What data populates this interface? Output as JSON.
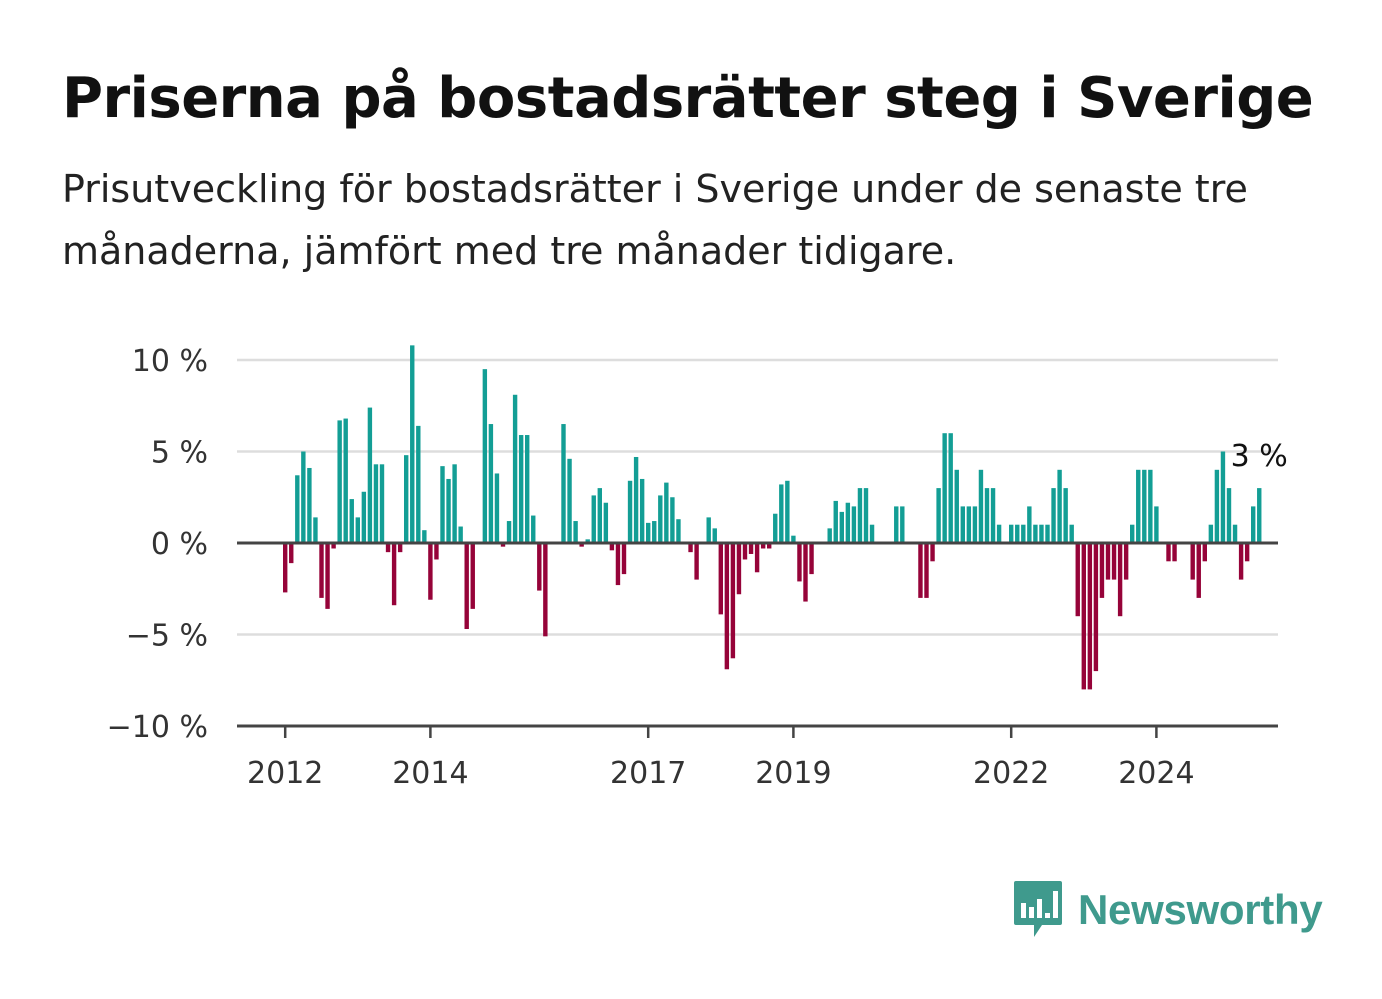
{
  "title": "Priserna på bostadsrätter steg i Sverige",
  "subtitle": "Prisutveckling för bostadsrätter i Sverige under de senaste tre månaderna, jämfört med tre månader tidigare.",
  "brand": {
    "name": "Newsworthy",
    "icon": "bar-chart-speech-bubble-icon",
    "color": "#3f9a8d"
  },
  "colors": {
    "positive": "#139e95",
    "negative": "#960339",
    "grid": "#dddddd",
    "axis": "#444444"
  },
  "chart_data": {
    "type": "bar",
    "title": "Priserna på bostadsrätter steg i Sverige",
    "xlabel": "",
    "ylabel": "",
    "ylim": [
      -10,
      11
    ],
    "y_ticks": [
      10,
      5,
      0,
      -5,
      -10
    ],
    "y_tick_labels": [
      "10 %",
      "5 %",
      "0 %",
      "−5 %",
      "−10 %"
    ],
    "x_ticks": [
      {
        "label": "2012",
        "year": 2012
      },
      {
        "label": "2014",
        "year": 2014
      },
      {
        "label": "2017",
        "year": 2017
      },
      {
        "label": "2019",
        "year": 2019
      },
      {
        "label": "2022",
        "year": 2022
      },
      {
        "label": "2024",
        "year": 2024
      }
    ],
    "grid": true,
    "start": "2012-01",
    "last_value_label": "3 %",
    "series": [
      {
        "unit": "%",
        "values": [
          -2.7,
          -1.1,
          3.7,
          5.0,
          4.1,
          1.4,
          -3.0,
          -3.6,
          -0.3,
          6.7,
          6.8,
          2.4,
          1.4,
          2.8,
          7.4,
          4.3,
          4.3,
          -0.5,
          -3.4,
          -0.5,
          4.8,
          10.8,
          6.4,
          0.7,
          -3.1,
          -0.9,
          4.2,
          3.5,
          4.3,
          0.9,
          -4.7,
          -3.6,
          0,
          9.5,
          6.5,
          3.8,
          -0.2,
          1.2,
          8.1,
          5.9,
          5.9,
          1.5,
          -2.6,
          -5.1,
          0,
          0,
          6.5,
          4.6,
          1.2,
          -0.2,
          0.2,
          2.6,
          3.0,
          2.2,
          -0.4,
          -2.3,
          -1.7,
          3.4,
          4.7,
          3.5,
          1.1,
          1.2,
          2.6,
          3.3,
          2.5,
          1.3,
          0,
          -0.5,
          -2.0,
          0,
          1.4,
          0.8,
          -3.9,
          -6.9,
          -6.3,
          -2.8,
          -0.9,
          -0.6,
          -1.6,
          -0.3,
          -0.3,
          1.6,
          3.2,
          3.4,
          0.4,
          -2.1,
          -3.2,
          -1.7,
          0,
          0,
          0.8,
          2.3,
          1.7,
          2.2,
          2.0,
          3.0,
          3.0,
          1.0,
          0,
          0,
          0,
          2.0,
          2.0,
          0,
          0,
          -3.0,
          -3.0,
          -1.0,
          3.0,
          6.0,
          6.0,
          4.0,
          2.0,
          2.0,
          2.0,
          4.0,
          3.0,
          3.0,
          1.0,
          0,
          1.0,
          1.0,
          1.0,
          2.0,
          1.0,
          1.0,
          1.0,
          3.0,
          4.0,
          3.0,
          1.0,
          -4.0,
          -8.0,
          -8.0,
          -7.0,
          -3.0,
          -2.0,
          -2.0,
          -4.0,
          -2.0,
          1.0,
          4.0,
          4.0,
          4.0,
          2.0,
          0,
          -1.0,
          -1.0,
          0,
          0,
          -2.0,
          -3.0,
          -1.0,
          1.0,
          4.0,
          5.0,
          3.0,
          1.0,
          -2.0,
          -1.0,
          2.0,
          3.0
        ]
      }
    ]
  }
}
